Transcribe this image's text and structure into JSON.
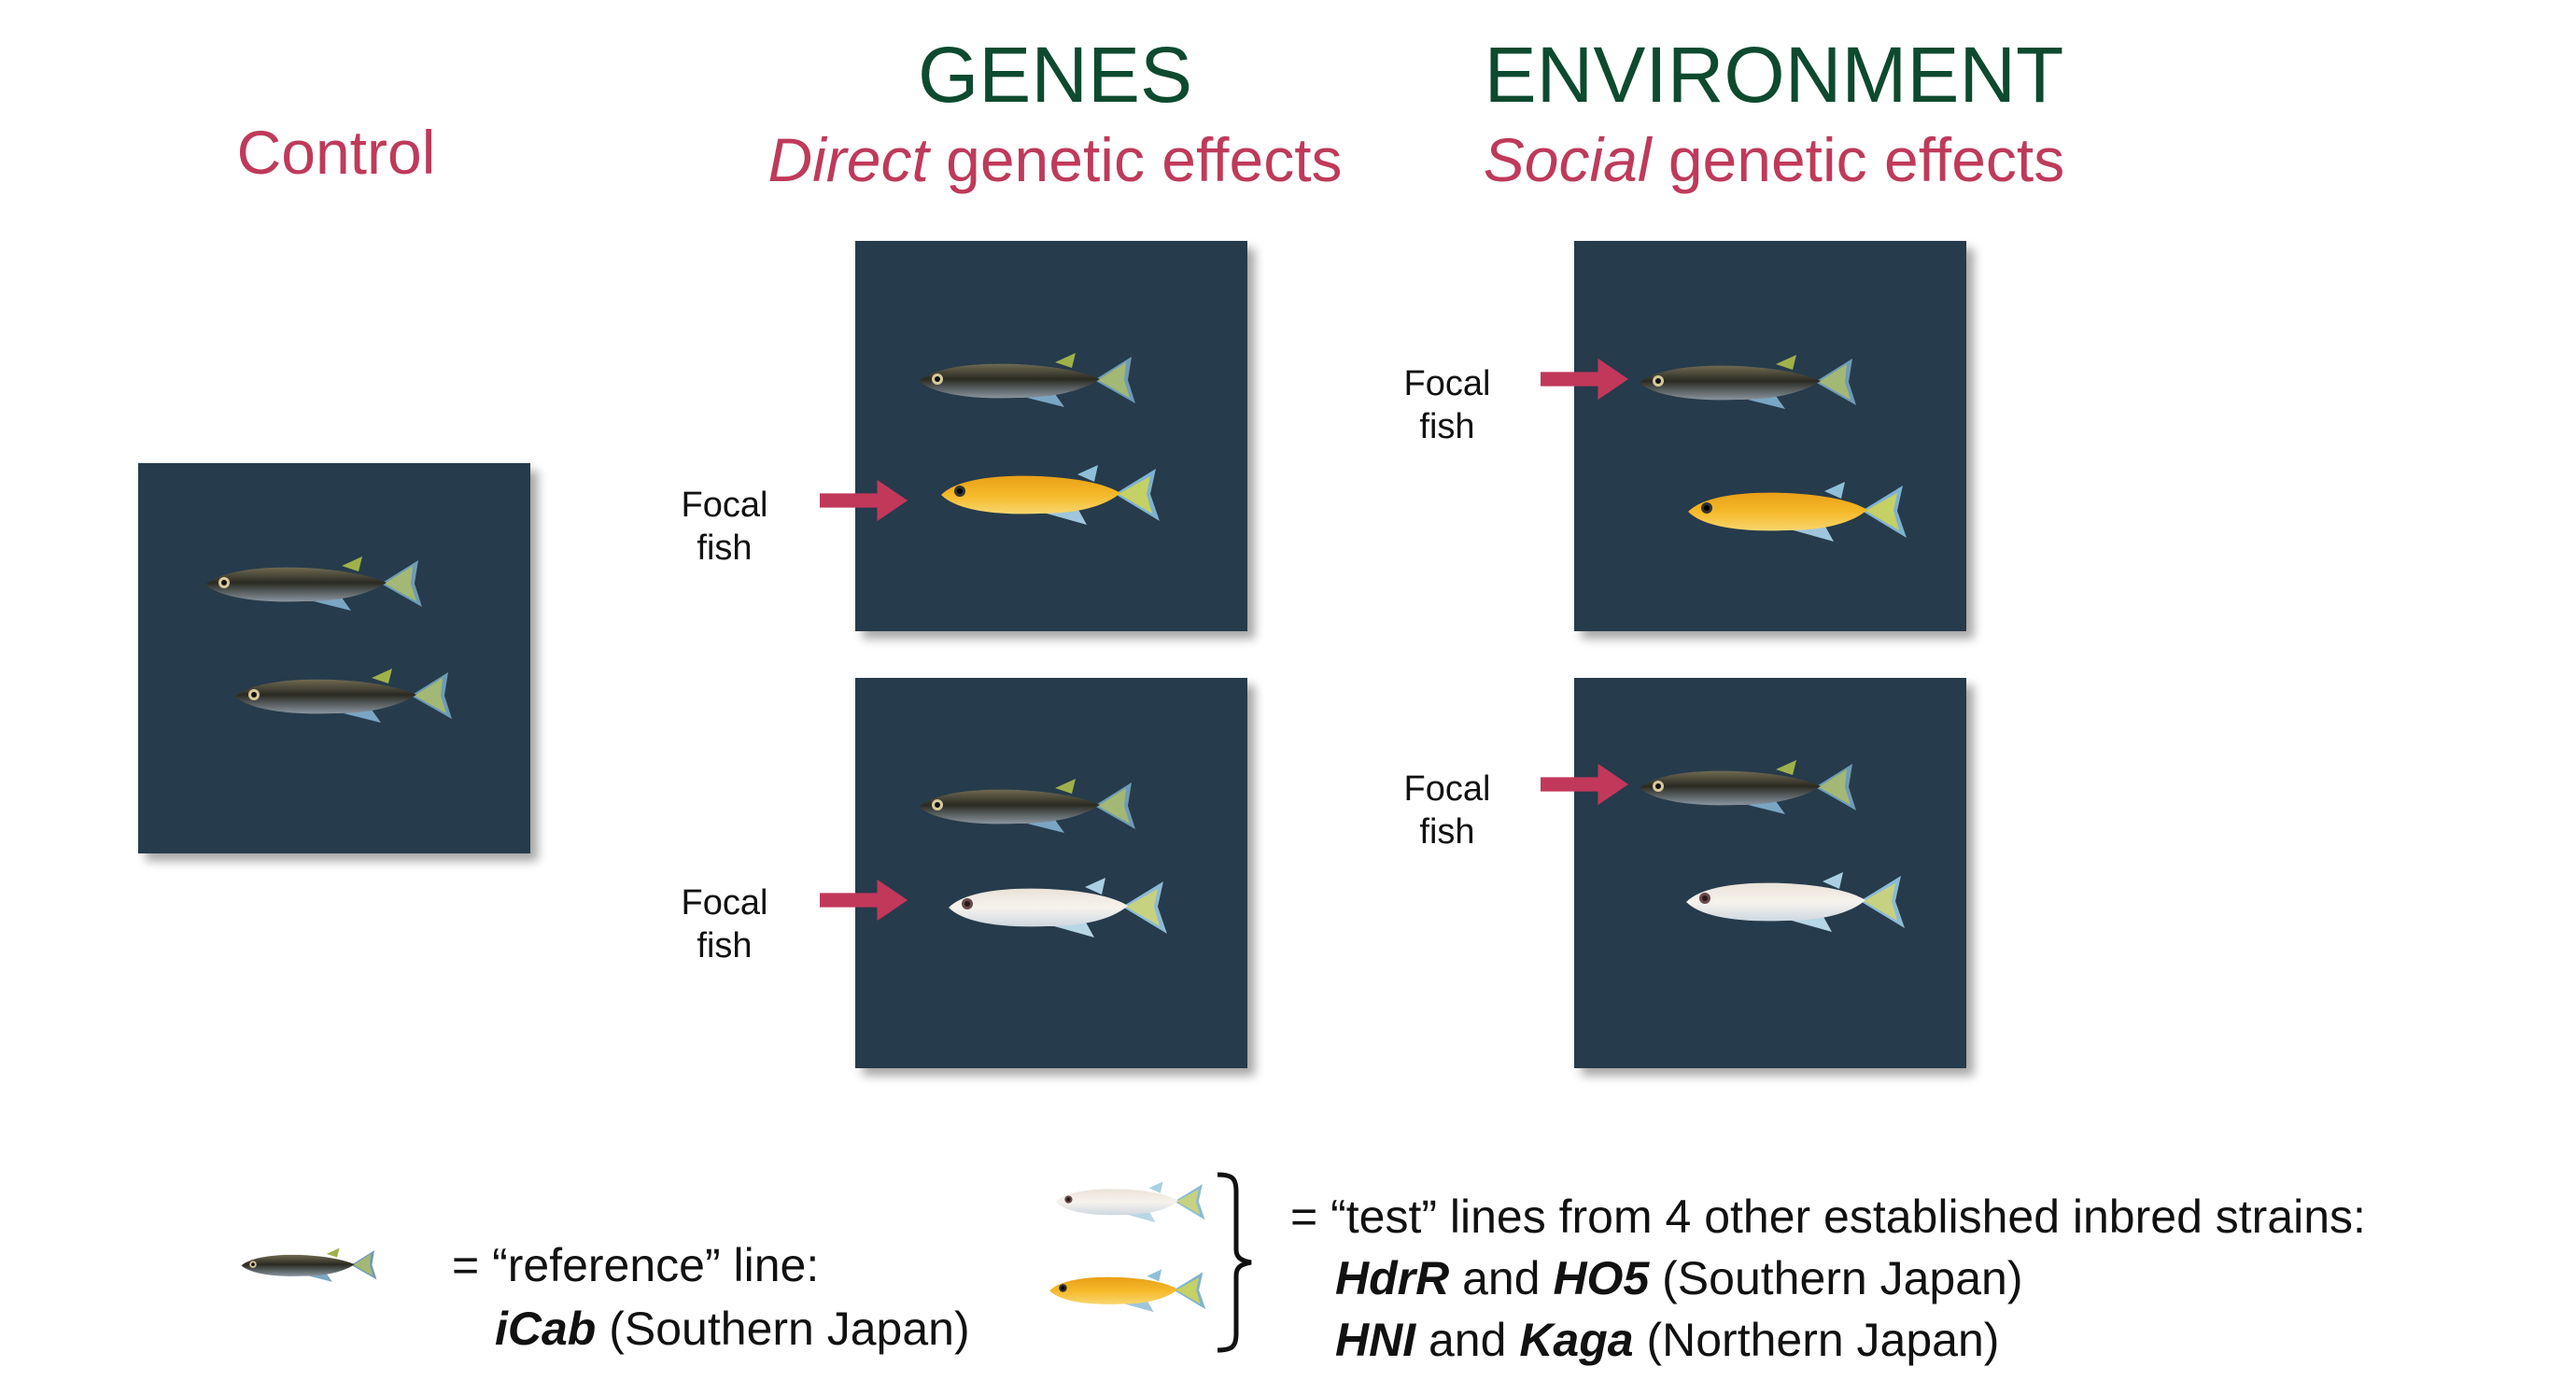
{
  "headings": {
    "control": "Control",
    "genes_title": "GENES",
    "genes_sub_italic": "Direct",
    "genes_sub_rest": " genetic effects",
    "env_title": "ENVIRONMENT",
    "env_sub_italic": "Social",
    "env_sub_rest": " genetic effects"
  },
  "focal_label": {
    "line1": "Focal",
    "line2": "fish"
  },
  "legend": {
    "reference_line1": "= “reference” line:",
    "reference_strain": "iCab",
    "reference_region": " (Southern Japan)",
    "test_line1": "= “test” lines from 4 other established inbred strains:",
    "strain_a": "HdrR",
    "and_a": " and ",
    "strain_b": "HO5",
    "region_south": " (Southern Japan)",
    "strain_c": "HNI",
    "and_b": " and ",
    "strain_d": "Kaga",
    "region_north": " (Northern Japan)"
  },
  "colors": {
    "tank": "#263b4b",
    "arrow": "#c2385a",
    "heading_green": "#0d4a2f",
    "heading_red": "#bf3a5a"
  },
  "icons": [
    "dark-medaka-fish-icon",
    "orange-medaka-fish-icon",
    "white-medaka-fish-icon",
    "focal-arrow-icon",
    "curly-brace-icon"
  ]
}
